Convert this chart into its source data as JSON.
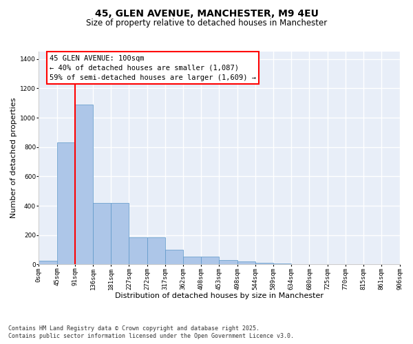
{
  "title_line1": "45, GLEN AVENUE, MANCHESTER, M9 4EU",
  "title_line2": "Size of property relative to detached houses in Manchester",
  "xlabel": "Distribution of detached houses by size in Manchester",
  "ylabel": "Number of detached properties",
  "bar_values": [
    25,
    830,
    1090,
    420,
    420,
    185,
    185,
    100,
    55,
    55,
    30,
    20,
    10,
    5,
    2,
    1,
    0,
    0,
    0,
    0
  ],
  "bin_labels": [
    "0sqm",
    "45sqm",
    "91sqm",
    "136sqm",
    "181sqm",
    "227sqm",
    "272sqm",
    "317sqm",
    "362sqm",
    "408sqm",
    "453sqm",
    "498sqm",
    "544sqm",
    "589sqm",
    "634sqm",
    "680sqm",
    "725sqm",
    "770sqm",
    "815sqm",
    "861sqm",
    "906sqm"
  ],
  "bar_color": "#adc6e8",
  "bar_edge_color": "#5a96c8",
  "background_color": "#e8eef8",
  "grid_color": "#ffffff",
  "annotation_line1": "45 GLEN AVENUE: 100sqm",
  "annotation_line2": "← 40% of detached houses are smaller (1,087)",
  "annotation_line3": "59% of semi-detached houses are larger (1,609) →",
  "red_line_x": 2,
  "ylim": [
    0,
    1450
  ],
  "yticks": [
    0,
    200,
    400,
    600,
    800,
    1000,
    1200,
    1400
  ],
  "footer_line1": "Contains HM Land Registry data © Crown copyright and database right 2025.",
  "footer_line2": "Contains public sector information licensed under the Open Government Licence v3.0.",
  "title_fontsize": 10,
  "subtitle_fontsize": 8.5,
  "axis_label_fontsize": 8,
  "tick_fontsize": 6.5,
  "annotation_fontsize": 7.5,
  "footer_fontsize": 6
}
